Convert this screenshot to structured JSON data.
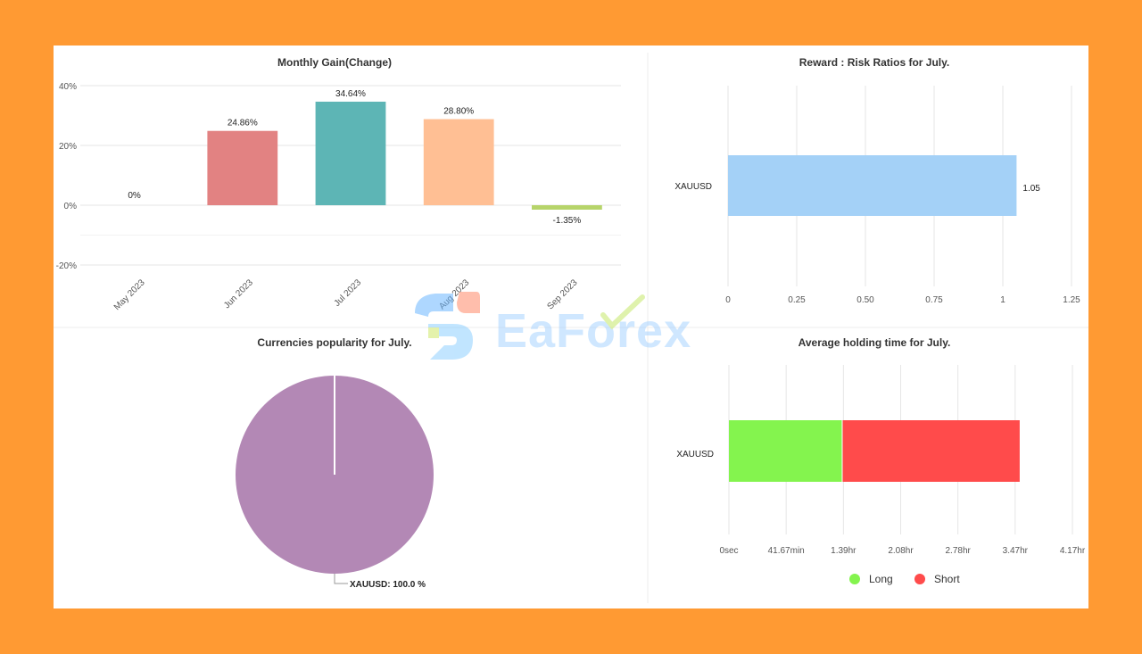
{
  "watermark": {
    "text": "EaForex"
  },
  "chart_data": [
    {
      "id": "monthly_gain",
      "type": "bar",
      "title": "Monthly Gain(Change)",
      "categories": [
        "May 2023",
        "Jun 2023",
        "Jul 2023",
        "Aug 2023",
        "Sep 2023"
      ],
      "values": [
        0,
        24.86,
        34.64,
        28.8,
        -1.35
      ],
      "value_labels": [
        "0%",
        "24.86%",
        "34.64%",
        "28.80%",
        "-1.35%"
      ],
      "colors": [
        "#cccccc",
        "#e28282",
        "#5db5b5",
        "#ffbf94",
        "#b6d46a"
      ],
      "yticks": [
        "40%",
        "20%",
        "0%",
        "-20%"
      ],
      "ylim": [
        -20,
        40
      ],
      "xlabel": "",
      "ylabel": ""
    },
    {
      "id": "reward_risk",
      "type": "bar",
      "orientation": "horizontal",
      "title": "Reward : Risk Ratios for July.",
      "categories": [
        "XAUUSD"
      ],
      "values": [
        1.05
      ],
      "value_labels": [
        "1.05"
      ],
      "color": "#a4d1f7",
      "xticks": [
        "0",
        "0.25",
        "0.50",
        "0.75",
        "1",
        "1.25"
      ],
      "xlim": [
        0,
        1.25
      ]
    },
    {
      "id": "currencies_popularity",
      "type": "pie",
      "title": "Currencies popularity for July.",
      "labels": [
        "XAUUSD"
      ],
      "values": [
        100.0
      ],
      "slice_labels": [
        "XAUUSD: 100.0 %"
      ],
      "colors": [
        "#b388b5"
      ]
    },
    {
      "id": "avg_holding_time",
      "type": "bar",
      "orientation": "horizontal",
      "stacked": true,
      "title": "Average holding time for July.",
      "categories": [
        "XAUUSD"
      ],
      "series": [
        {
          "name": "Long",
          "values": [
            1.37
          ],
          "color": "#84f44e"
        },
        {
          "name": "Short",
          "values": [
            2.16
          ],
          "color": "#ff4b4b"
        }
      ],
      "unit": "hr",
      "xticks": [
        "0sec",
        "41.67min",
        "1.39hr",
        "2.08hr",
        "2.78hr",
        "3.47hr",
        "4.17hr"
      ],
      "xlim": [
        0,
        4.17
      ]
    }
  ]
}
